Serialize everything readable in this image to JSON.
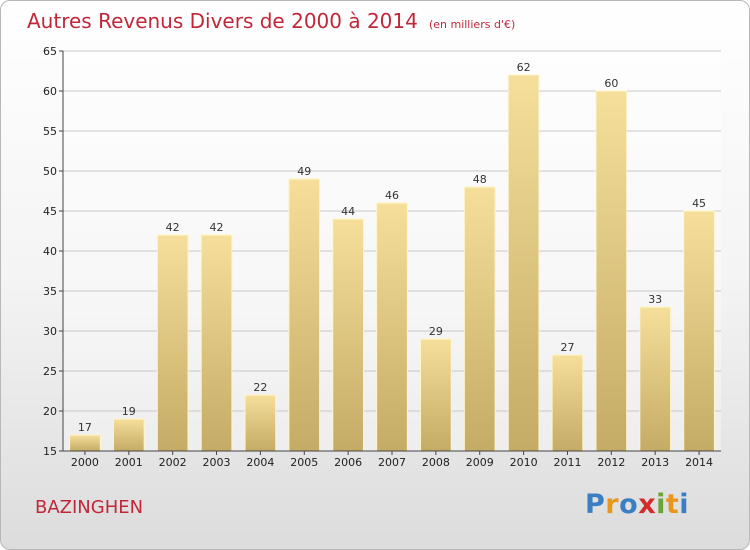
{
  "brand": "Proxiti",
  "commune": "BAZINGHEN",
  "chart_data": {
    "type": "bar",
    "title": "Autres Revenus Divers de 2000 à 2014",
    "subtitle": "(en milliers d'€)",
    "categories": [
      "2000",
      "2001",
      "2002",
      "2003",
      "2004",
      "2005",
      "2006",
      "2007",
      "2008",
      "2009",
      "2010",
      "2011",
      "2012",
      "2013",
      "2014"
    ],
    "values": [
      17,
      19,
      42,
      42,
      22,
      49,
      44,
      46,
      29,
      48,
      62,
      27,
      60,
      33,
      45
    ],
    "ylim": [
      15,
      65
    ],
    "yticks": [
      15,
      20,
      25,
      30,
      35,
      40,
      45,
      50,
      55,
      60,
      65
    ],
    "grid": true,
    "colors": {
      "bar_top": "#f5df9a",
      "bar_bottom": "#c4ab66",
      "bar_edge": "#fff4cc",
      "title": "#c0283a"
    }
  }
}
